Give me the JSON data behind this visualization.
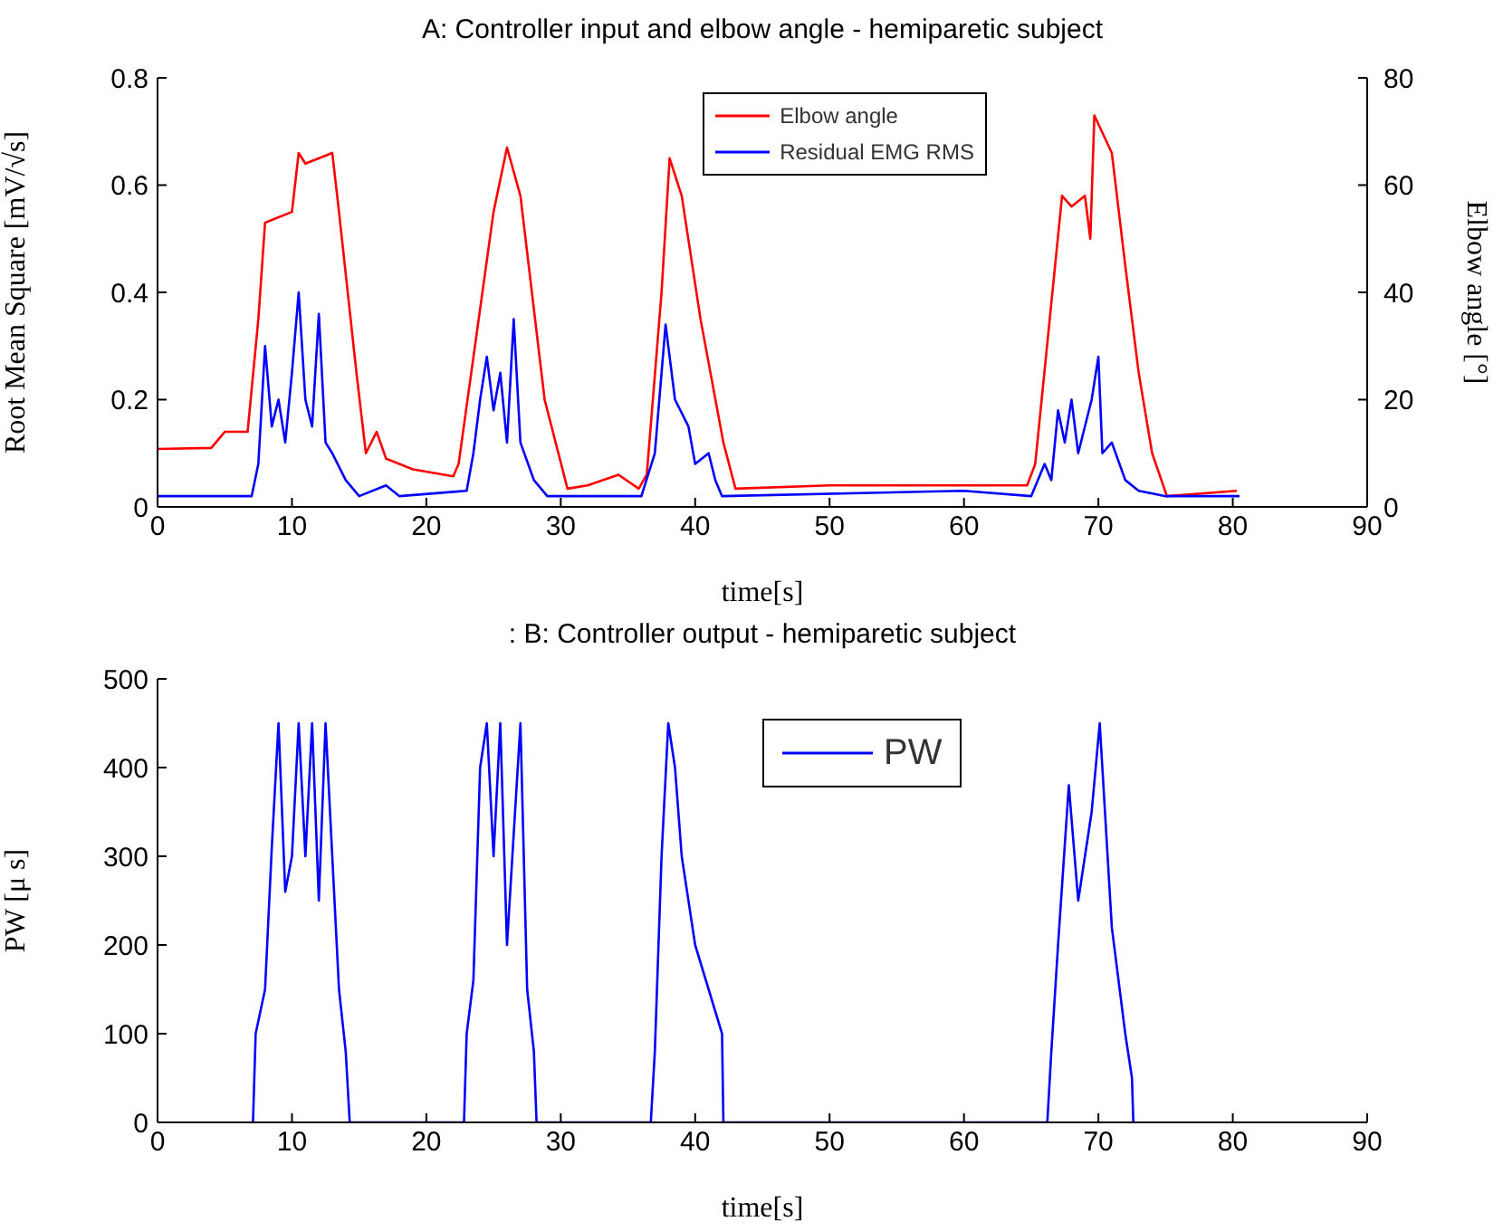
{
  "chart_data": [
    {
      "type": "line",
      "title": "A:  Controller input and elbow angle  - hemiparetic subject",
      "xlabel": "time[s]",
      "ylabel": "Root Mean Square [mV/√s]",
      "y2label": "Elbow angle [°]",
      "xlim": [
        0,
        90
      ],
      "xticks": [
        0,
        10,
        20,
        30,
        40,
        50,
        60,
        70,
        80,
        90
      ],
      "ylim": [
        0,
        0.8
      ],
      "yticks": [
        0,
        0.2,
        0.4,
        0.6,
        0.8
      ],
      "y2lim": [
        0,
        80
      ],
      "y2ticks": [
        0,
        20,
        40,
        60,
        80
      ],
      "grid": false,
      "legend": "top",
      "marker": "none",
      "line_style": "solid",
      "series": [
        {
          "name": "Elbow angle",
          "color": "#ff0000",
          "axis": "y2",
          "x": [
            0,
            4,
            5,
            6.7,
            7.5,
            8,
            10,
            10.5,
            11,
            13,
            13.5,
            14.8,
            15.5,
            16.3,
            17,
            19,
            22,
            22.4,
            25,
            26,
            27,
            28.8,
            30.5,
            32,
            34.3,
            35.8,
            36.4,
            37.5,
            38.1,
            39,
            40.4,
            42.1,
            43,
            50,
            60,
            64.7,
            65.3,
            67.3,
            68,
            69,
            69.4,
            69.7,
            71,
            72,
            73,
            74,
            75.1,
            80.3
          ],
          "values": [
            10.8,
            11,
            14,
            14,
            35,
            53,
            55,
            66,
            64,
            66,
            55,
            25,
            10,
            14,
            9,
            7,
            5.7,
            8,
            55,
            67,
            58,
            20,
            3.4,
            4,
            6,
            3.4,
            6,
            40,
            65,
            58,
            35,
            12,
            3.4,
            4,
            4,
            4,
            8,
            58,
            56,
            58,
            50,
            73,
            66,
            45,
            25,
            10,
            2,
            3
          ]
        },
        {
          "name": "Residual EMG RMS",
          "color": "#0000ff",
          "x": [
            0,
            7,
            7.5,
            8,
            8.5,
            9,
            9.5,
            10,
            10.5,
            11,
            11.5,
            12,
            12.5,
            13,
            14,
            15,
            17,
            18,
            23,
            23.5,
            24,
            24.5,
            25,
            25.5,
            26,
            26.5,
            27,
            28,
            29,
            36,
            37,
            37.8,
            38.5,
            39.5,
            40,
            41,
            41.5,
            42,
            60,
            65,
            66,
            66.5,
            67,
            67.5,
            68,
            68.5,
            69.5,
            70,
            70.3,
            71,
            72,
            73,
            75,
            80.5
          ],
          "values": [
            0.02,
            0.02,
            0.08,
            0.3,
            0.15,
            0.2,
            0.12,
            0.25,
            0.4,
            0.2,
            0.15,
            0.36,
            0.12,
            0.1,
            0.05,
            0.02,
            0.04,
            0.02,
            0.03,
            0.1,
            0.2,
            0.28,
            0.18,
            0.25,
            0.12,
            0.35,
            0.12,
            0.05,
            0.02,
            0.02,
            0.1,
            0.34,
            0.2,
            0.15,
            0.08,
            0.1,
            0.05,
            0.02,
            0.03,
            0.02,
            0.08,
            0.05,
            0.18,
            0.12,
            0.2,
            0.1,
            0.2,
            0.28,
            0.1,
            0.12,
            0.05,
            0.03,
            0.02,
            0.02
          ]
        }
      ]
    },
    {
      "type": "line",
      "title": ": B:  Controller output - hemiparetic subject",
      "xlabel": "time[s]",
      "ylabel": "PW [μ s]",
      "xlim": [
        0,
        90
      ],
      "xticks": [
        0,
        10,
        20,
        30,
        40,
        50,
        60,
        70,
        80,
        90
      ],
      "ylim": [
        0,
        500
      ],
      "yticks": [
        0,
        100,
        200,
        300,
        400,
        500
      ],
      "grid": false,
      "legend": "top",
      "marker": "none",
      "line_style": "solid",
      "series": [
        {
          "name": "PW",
          "color": "#0000ff",
          "x": [
            7.1,
            7.3,
            8,
            8.5,
            9,
            9.5,
            10,
            10.5,
            11,
            11.5,
            12,
            12.5,
            13,
            13.5,
            14,
            14.3,
            22.8,
            23,
            23.5,
            24,
            24.5,
            25,
            25.5,
            26,
            27,
            27.5,
            28,
            28.2,
            36.7,
            37,
            37.5,
            38,
            38.5,
            39,
            40,
            41,
            42,
            42.1,
            66.2,
            66.5,
            67,
            67.8,
            68.5,
            69.5,
            70.1,
            71,
            72,
            72.5,
            72.6
          ],
          "values": [
            0,
            100,
            150,
            310,
            450,
            260,
            300,
            450,
            300,
            450,
            250,
            450,
            300,
            150,
            80,
            0,
            0,
            100,
            160,
            400,
            450,
            300,
            450,
            200,
            450,
            150,
            80,
            0,
            0,
            80,
            300,
            450,
            400,
            300,
            200,
            150,
            100,
            0,
            0,
            80,
            200,
            380,
            250,
            350,
            450,
            220,
            100,
            50,
            0
          ]
        }
      ]
    }
  ]
}
